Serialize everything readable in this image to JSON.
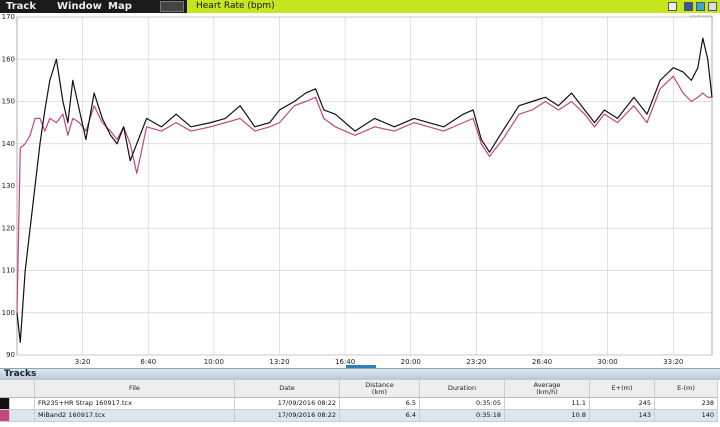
{
  "menu": [
    "Track",
    "Window",
    "Map"
  ],
  "chart_data": {
    "type": "line",
    "title": "Heart Rate (bpm)",
    "x": [
      0,
      10,
      25,
      40,
      55,
      70,
      85,
      100,
      120,
      140,
      155,
      170,
      190,
      210,
      235,
      260,
      285,
      305,
      325,
      345,
      365,
      395,
      440,
      485,
      530,
      590,
      635,
      680,
      725,
      770,
      800,
      845,
      880,
      910,
      935,
      970,
      1030,
      1090,
      1150,
      1210,
      1300,
      1360,
      1390,
      1415,
      1440,
      1480,
      1530,
      1570,
      1610,
      1650,
      1690,
      1730,
      1760,
      1790,
      1830,
      1880,
      1920,
      1960,
      2000,
      2030,
      2055,
      2075,
      2090,
      2105,
      2118
    ],
    "series": [
      {
        "color": "#111111",
        "values": [
          100,
          93,
          110,
          120,
          130,
          140,
          148,
          155,
          160,
          150,
          145,
          155,
          148,
          141,
          152,
          146,
          142,
          140,
          144,
          136,
          140,
          146,
          144,
          147,
          144,
          145,
          146,
          149,
          144,
          145,
          148,
          150,
          152,
          153,
          148,
          147,
          143,
          146,
          144,
          146,
          144,
          147,
          148,
          141,
          138,
          143,
          149,
          150,
          151,
          149,
          152,
          148,
          145,
          148,
          146,
          151,
          147,
          155,
          158,
          157,
          155,
          158,
          165,
          160,
          151
        ]
      },
      {
        "color": "#c2477f",
        "values": [
          100,
          139,
          140,
          142,
          146,
          146,
          143,
          146,
          145,
          147,
          142,
          146,
          145,
          143,
          149,
          145,
          143,
          141,
          144,
          140,
          133,
          144,
          143,
          145,
          143,
          144,
          145,
          146,
          143,
          144,
          145,
          149,
          150,
          151,
          146,
          144,
          142,
          144,
          143,
          145,
          143,
          145,
          146,
          140,
          137,
          141,
          147,
          148,
          150,
          148,
          150,
          147,
          144,
          147,
          145,
          149,
          145,
          153,
          156,
          152,
          150,
          151,
          152,
          151,
          151
        ]
      }
    ],
    "xlim": [
      0,
      2118
    ],
    "xticks": [
      {
        "value": 200,
        "label": "3:20"
      },
      {
        "value": 400,
        "label": "6:40"
      },
      {
        "value": 600,
        "label": "10:00"
      },
      {
        "value": 800,
        "label": "13:20"
      },
      {
        "value": 1000,
        "label": "16:40"
      },
      {
        "value": 1200,
        "label": "20:00"
      },
      {
        "value": 1400,
        "label": "23:20"
      },
      {
        "value": 1600,
        "label": "26:40"
      },
      {
        "value": 1800,
        "label": "30:00"
      },
      {
        "value": 2000,
        "label": "33:20"
      }
    ],
    "ylim": [
      90,
      170
    ],
    "yticks": [
      90,
      100,
      110,
      120,
      130,
      140,
      150,
      160,
      170
    ],
    "grid": true
  },
  "tracks": {
    "title": "Tracks",
    "columns": [
      "File",
      "Date",
      "Distance (km)",
      "Duration",
      "Average (km/h)",
      "E+(m)",
      "E-(m)"
    ],
    "rows": [
      [
        "FR235+HR Strap 160917.tcx",
        "17/09/2016 08:22",
        6.5,
        "0:35:05",
        11.1,
        245,
        238
      ],
      [
        "MiBand2 160917.tcx",
        "17/09/2016 08:22",
        6.4,
        "0:35:18",
        10.8,
        143,
        140
      ]
    ]
  }
}
